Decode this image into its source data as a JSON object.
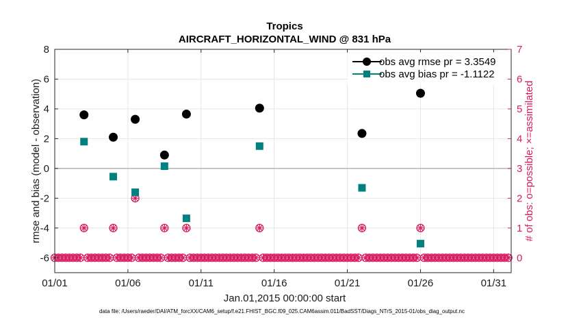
{
  "chart_data": {
    "type": "scatter",
    "title": "Tropics",
    "subtitle": "AIRCRAFT_HORIZONTAL_WIND @ 831 hPa",
    "xlabel": "Jan.01,2015 00:00:00 start",
    "ylabel": "rmse and bias (model - observation)",
    "ylabel_right": "# of obs: o=possible; ×=assimilated",
    "xlim": [
      1,
      32.2
    ],
    "ylim": [
      -7,
      8
    ],
    "ylim_right": [
      -0.5,
      7
    ],
    "x_ticks": [
      1,
      6,
      11,
      16,
      21,
      26,
      31
    ],
    "x_tick_labels": [
      "01/01",
      "01/06",
      "01/11",
      "01/16",
      "01/21",
      "01/26",
      "01/31"
    ],
    "y_ticks": [
      -6,
      -4,
      -2,
      0,
      2,
      4,
      6,
      8
    ],
    "y_tick_labels": [
      "-6",
      "-4",
      "-2",
      "0",
      "2",
      "4",
      "6",
      "8"
    ],
    "y_right_ticks": [
      0,
      1,
      2,
      3,
      4,
      5,
      6,
      7
    ],
    "y_right_tick_labels": [
      "0",
      "1",
      "2",
      "3",
      "4",
      "5",
      "6",
      "7"
    ],
    "zero_line": 0,
    "grid": true,
    "legend_position": "top-right",
    "series": [
      {
        "name": "obs avg rmse pr = 3.3549",
        "color": "#000000",
        "marker": "circle",
        "axis": "left",
        "points": [
          [
            3,
            3.6
          ],
          [
            5,
            2.1
          ],
          [
            6.5,
            3.3
          ],
          [
            8.5,
            0.9
          ],
          [
            10,
            3.65
          ],
          [
            15,
            4.05
          ],
          [
            22,
            2.35
          ],
          [
            26,
            5.05
          ]
        ]
      },
      {
        "name": "obs avg bias pr = -1.1122",
        "color": "#00807f",
        "marker": "square",
        "axis": "left",
        "points": [
          [
            3,
            1.8
          ],
          [
            5,
            -0.55
          ],
          [
            6.5,
            -1.6
          ],
          [
            8.5,
            0.15
          ],
          [
            10,
            -3.35
          ],
          [
            15,
            1.5
          ],
          [
            22,
            -1.3
          ],
          [
            26,
            -5.05
          ]
        ]
      },
      {
        "name": "obs possible",
        "color": "#d81b60",
        "marker": "circle-open",
        "axis": "right",
        "points": [
          [
            3,
            1
          ],
          [
            5,
            1
          ],
          [
            6.5,
            2
          ],
          [
            8.5,
            1
          ],
          [
            10,
            1
          ],
          [
            15,
            1
          ],
          [
            22,
            1
          ],
          [
            26,
            1
          ]
        ]
      },
      {
        "name": "obs assimilated",
        "color": "#d81b60",
        "marker": "star",
        "axis": "right",
        "points": [
          [
            3,
            1
          ],
          [
            5,
            1
          ],
          [
            6.5,
            2
          ],
          [
            8.5,
            1
          ],
          [
            10,
            1
          ],
          [
            15,
            1
          ],
          [
            22,
            1
          ],
          [
            26,
            1
          ]
        ]
      }
    ],
    "zero_count_marker_step": 0.25
  },
  "footer": "data file: /Users/raeder/DAI/ATM_forcXX/CAM6_setup/f.e21.FHIST_BGC.f09_025.CAM6assim.011/BadSST/Diags_NTrS_2015-01/obs_diag_output.nc",
  "colors": {
    "rmse": "#000000",
    "bias": "#00807f",
    "counts": "#d81b60",
    "grid": "#e6e6e6",
    "zero": "#b3b3b3"
  }
}
